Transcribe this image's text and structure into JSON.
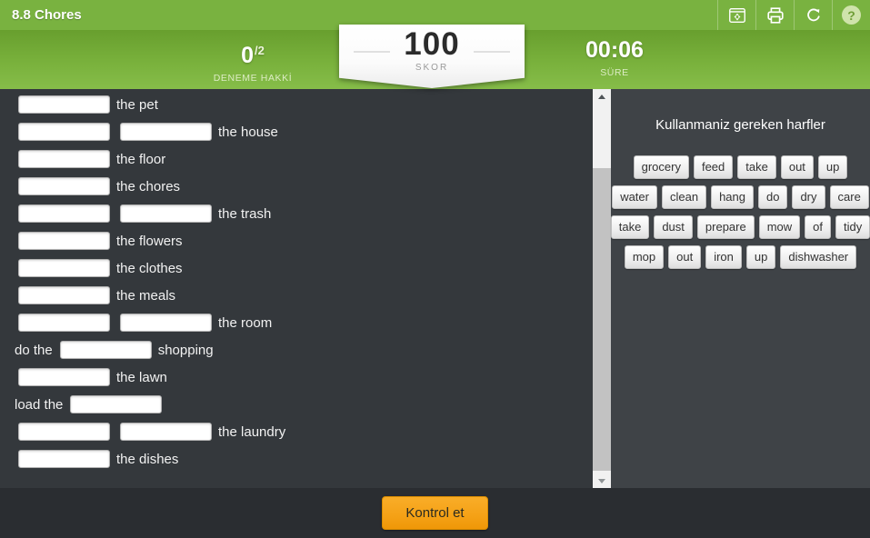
{
  "title_bar": {
    "title": "8.8 Chores",
    "help_glyph": "?",
    "icons": [
      "fullscreen-icon",
      "print-icon",
      "refresh-icon",
      "help-icon"
    ]
  },
  "header": {
    "attempts": {
      "value": "0",
      "total": "/2",
      "label": "DENEME HAKKİ"
    },
    "score": {
      "value": "100",
      "label": "SKOR"
    },
    "time": {
      "value": "00:06",
      "label": "SÜRE"
    }
  },
  "quiz": {
    "rows": [
      {
        "prefix": "",
        "blanks": 1,
        "suffix": "the pet"
      },
      {
        "prefix": "",
        "blanks": 2,
        "suffix": "the house"
      },
      {
        "prefix": "",
        "blanks": 1,
        "suffix": "the floor"
      },
      {
        "prefix": "",
        "blanks": 1,
        "suffix": "the chores"
      },
      {
        "prefix": "",
        "blanks": 2,
        "suffix": "the trash"
      },
      {
        "prefix": "",
        "blanks": 1,
        "suffix": "the flowers"
      },
      {
        "prefix": "",
        "blanks": 1,
        "suffix": "the clothes"
      },
      {
        "prefix": "",
        "blanks": 1,
        "suffix": "the meals"
      },
      {
        "prefix": "",
        "blanks": 2,
        "suffix": "the room"
      },
      {
        "prefix": "do the",
        "blanks": 1,
        "suffix": "shopping"
      },
      {
        "prefix": "",
        "blanks": 1,
        "suffix": "the lawn"
      },
      {
        "prefix": "load the",
        "blanks": 1,
        "suffix": ""
      },
      {
        "prefix": "",
        "blanks": 2,
        "suffix": "the laundry"
      },
      {
        "prefix": "",
        "blanks": 1,
        "suffix": "the dishes"
      }
    ]
  },
  "word_bank": {
    "title": "Kullanmaniz gereken harfler",
    "rows": [
      [
        "grocery",
        "feed",
        "take",
        "out",
        "up"
      ],
      [
        "water",
        "clean",
        "hang",
        "do",
        "dry",
        "care"
      ],
      [
        "take",
        "dust",
        "prepare",
        "mow",
        "of",
        "tidy"
      ],
      [
        "mop",
        "out",
        "iron",
        "up",
        "dishwasher"
      ]
    ]
  },
  "footer": {
    "check_button": "Kontrol et"
  },
  "colors": {
    "topbar_green": "#79b240",
    "header_green_top": "#689f2e",
    "header_green_bottom": "#86bd49",
    "content_bg": "#34383c",
    "panel_bg": "#3f4347",
    "footer_bg": "#2a2d31",
    "accent_orange": "#f5a116"
  }
}
